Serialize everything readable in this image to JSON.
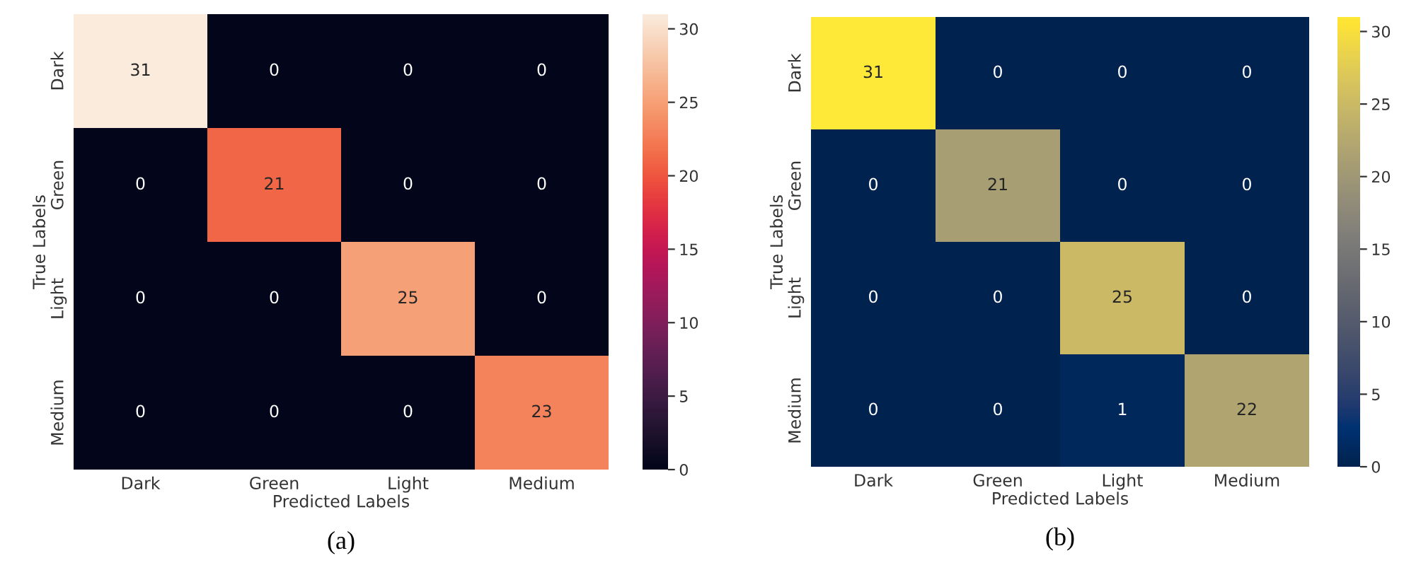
{
  "chart_data": [
    {
      "type": "heatmap",
      "xlabel": "Predicted Labels",
      "ylabel": "True Labels",
      "categories": [
        "Dark",
        "Green",
        "Light",
        "Medium"
      ],
      "y_categories": [
        "Dark",
        "Green",
        "Light",
        "Medium"
      ],
      "cells": [
        [
          31,
          0,
          0,
          0
        ],
        [
          0,
          21,
          0,
          0
        ],
        [
          0,
          0,
          25,
          0
        ],
        [
          0,
          0,
          0,
          23
        ]
      ],
      "data_labels": true,
      "clim": [
        0,
        31
      ],
      "cticks": [
        0,
        5,
        10,
        15,
        20,
        25,
        30
      ],
      "annotations": [
        "(a)"
      ]
    },
    {
      "type": "heatmap",
      "xlabel": "Predicted Labels",
      "ylabel": "True Labels",
      "categories": [
        "Dark",
        "Green",
        "Light",
        "Medium"
      ],
      "y_categories": [
        "Dark",
        "Green",
        "Light",
        "Medium"
      ],
      "cells": [
        [
          31,
          0,
          0,
          0
        ],
        [
          0,
          21,
          0,
          0
        ],
        [
          0,
          0,
          25,
          0
        ],
        [
          0,
          0,
          1,
          22
        ]
      ],
      "data_labels": true,
      "clim": [
        0,
        31
      ],
      "cticks": [
        0,
        5,
        10,
        15,
        20,
        25,
        30
      ],
      "annotations": [
        "(b)"
      ]
    }
  ]
}
